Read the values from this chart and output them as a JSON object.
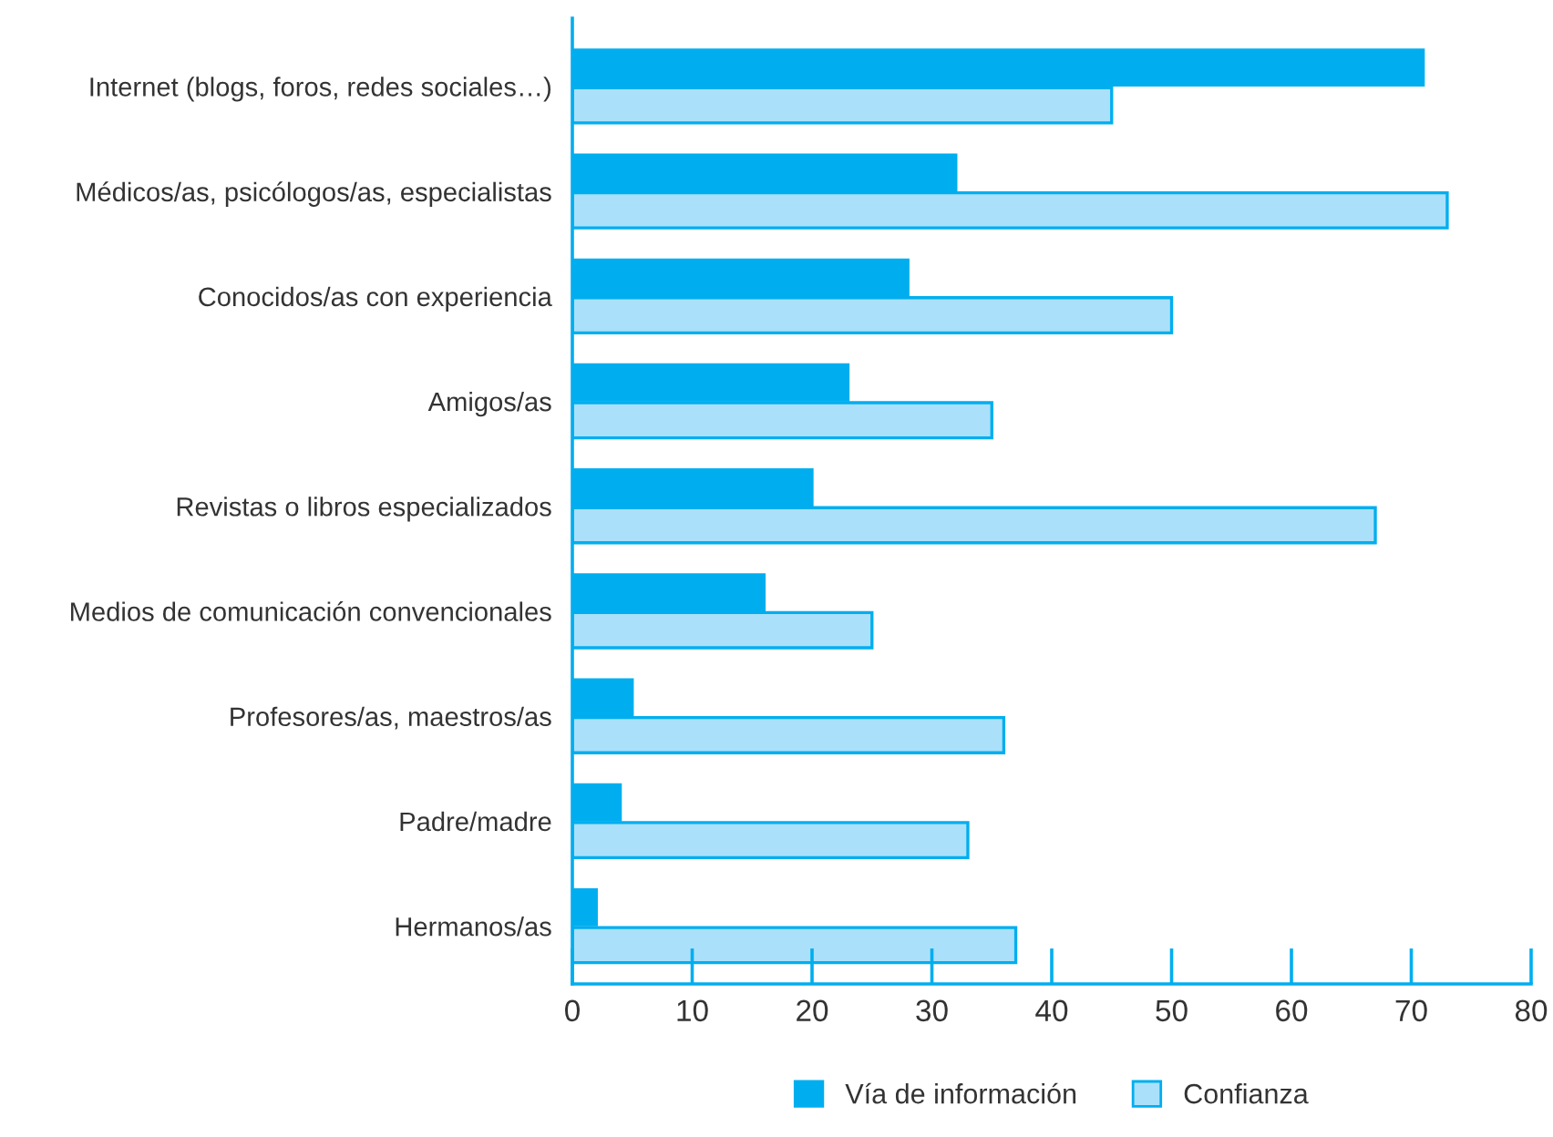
{
  "chart_data": {
    "type": "bar",
    "orientation": "horizontal",
    "categories": [
      "Internet (blogs, foros, redes sociales…)",
      "Médicos/as, psicólogos/as, especialistas",
      "Conocidos/as con experiencia",
      "Amigos/as",
      "Revistas o libros especializados",
      "Medios de comunicación convencionales",
      "Profesores/as, maestros/as",
      "Padre/madre",
      "Hermanos/as"
    ],
    "series": [
      {
        "name": "Vía de información",
        "color": "#00aeef",
        "values": [
          71,
          32,
          28,
          23,
          20,
          16,
          5,
          4,
          2
        ]
      },
      {
        "name": "Confianza",
        "color": "#abe0fa",
        "values": [
          45,
          73,
          50,
          35,
          67,
          25,
          36,
          33,
          37
        ]
      }
    ],
    "xlim": [
      0,
      80
    ],
    "xticks": [
      0,
      10,
      20,
      30,
      40,
      50,
      60,
      70,
      80
    ],
    "grid": false,
    "legend": "bottom"
  }
}
